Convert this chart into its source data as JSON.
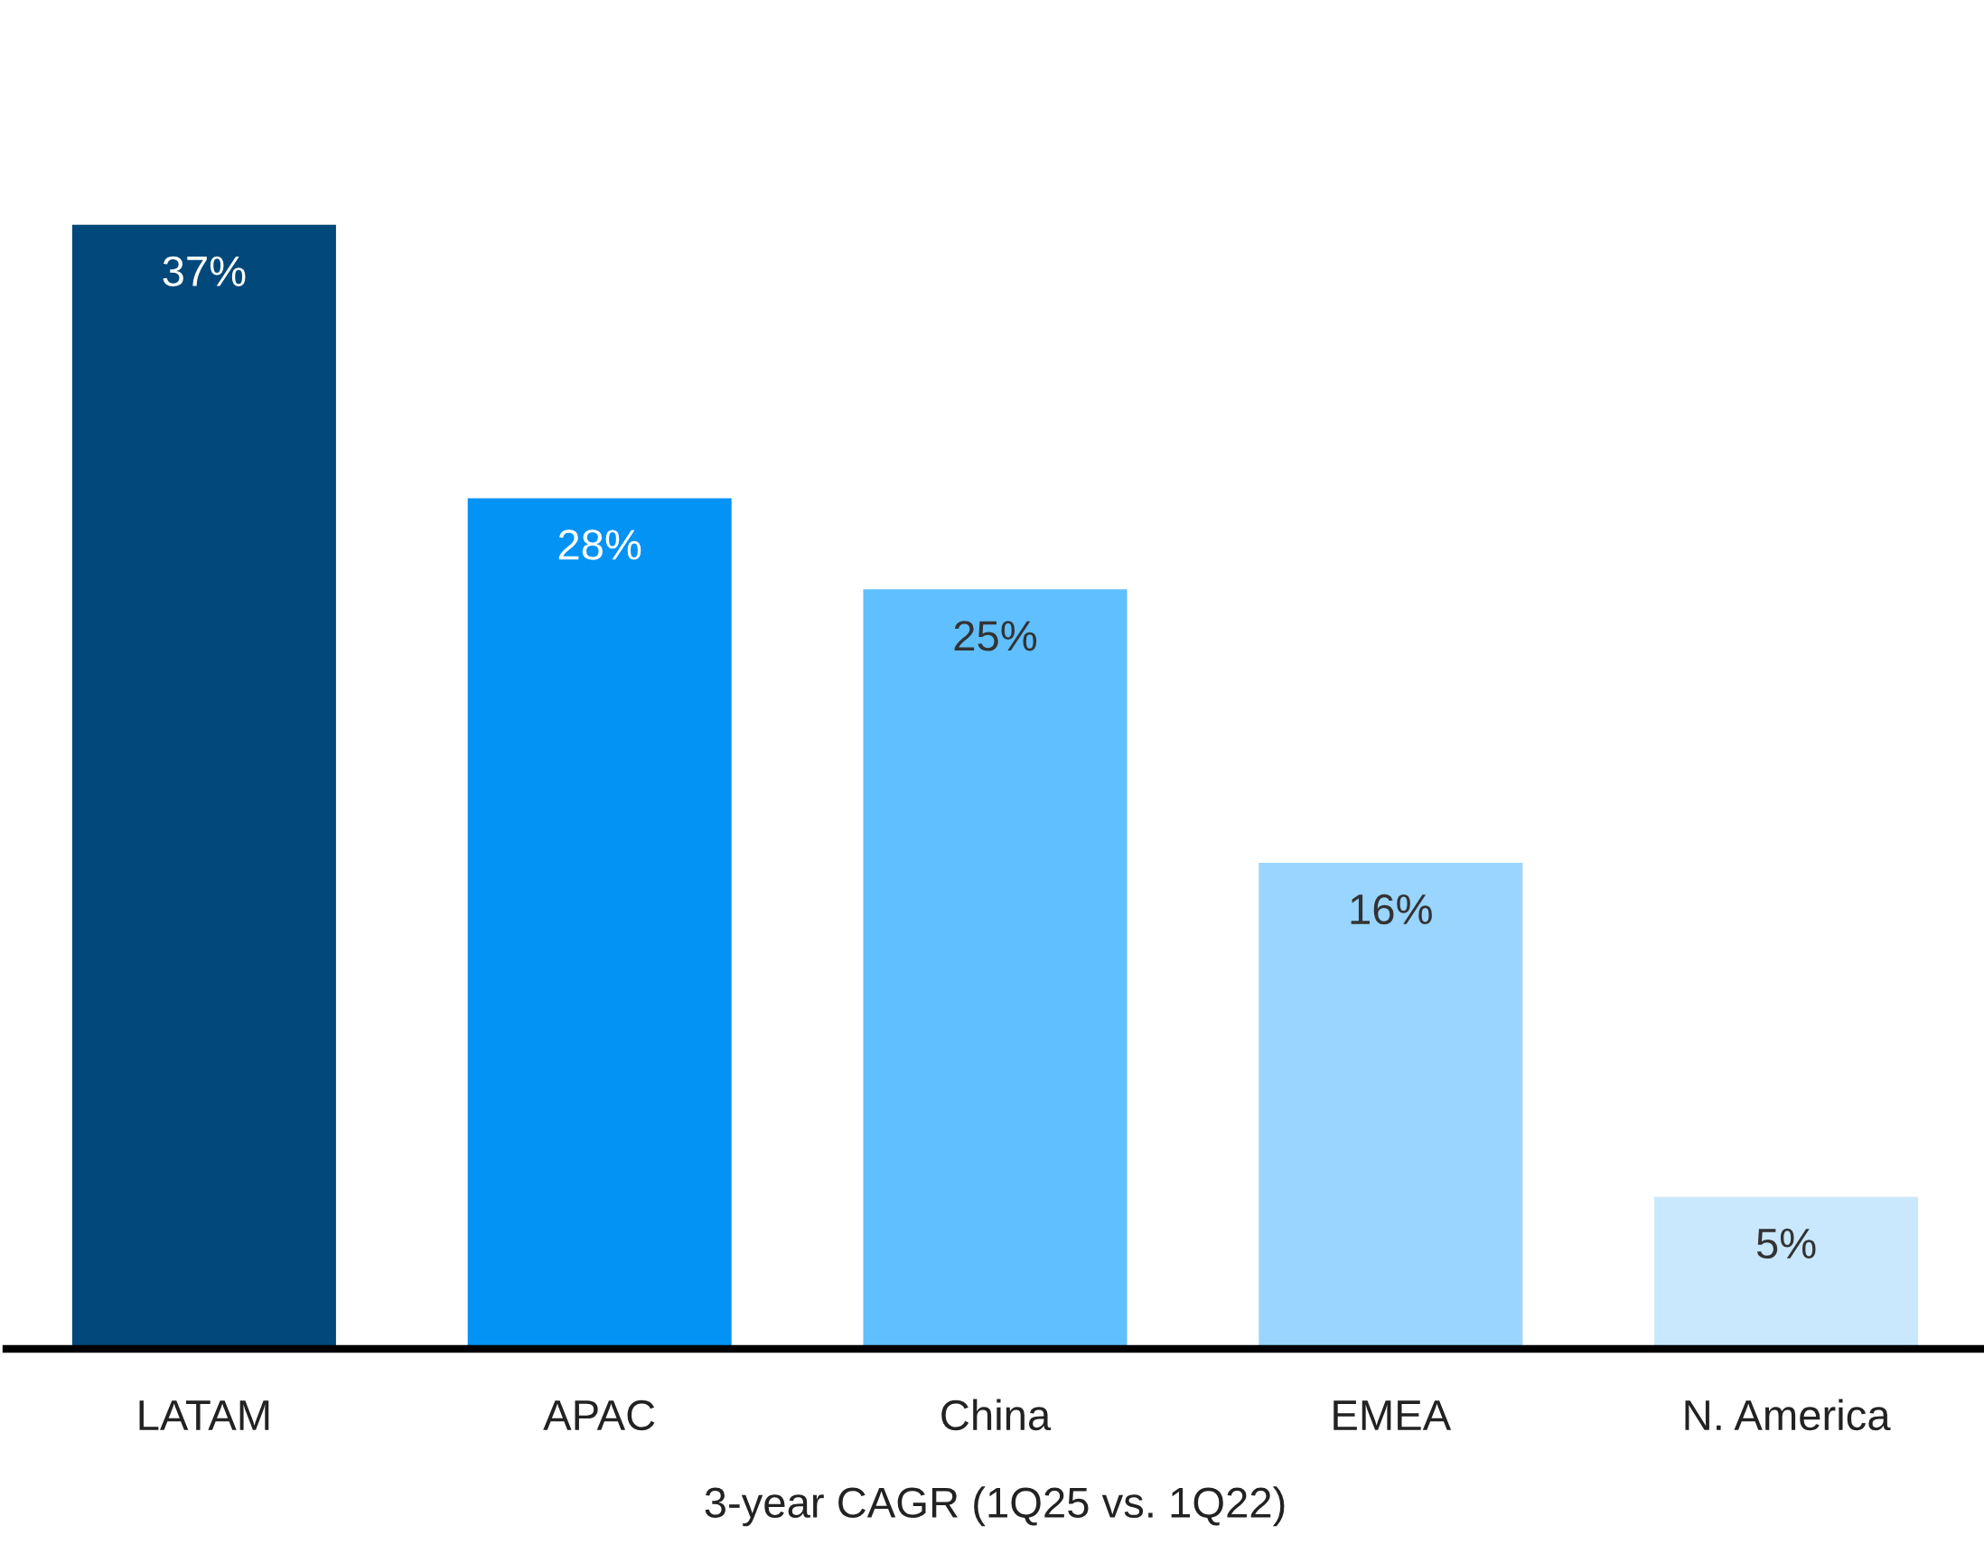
{
  "chart_data": {
    "type": "bar",
    "xlabel": "3-year CAGR (1Q25 vs. 1Q22)",
    "categories": [
      "LATAM",
      "APAC",
      "China",
      "EMEA",
      "N. America"
    ],
    "values": [
      37,
      28,
      25,
      16,
      5
    ],
    "colors": [
      "#03487a",
      "#0393f5",
      "#60bffe",
      "#99d5fe",
      "#c9e8fe"
    ],
    "value_labels": [
      "37%",
      "28%",
      "25%",
      "16%",
      "5%"
    ],
    "tick_labels": "x",
    "grid": false,
    "legend": false
  }
}
